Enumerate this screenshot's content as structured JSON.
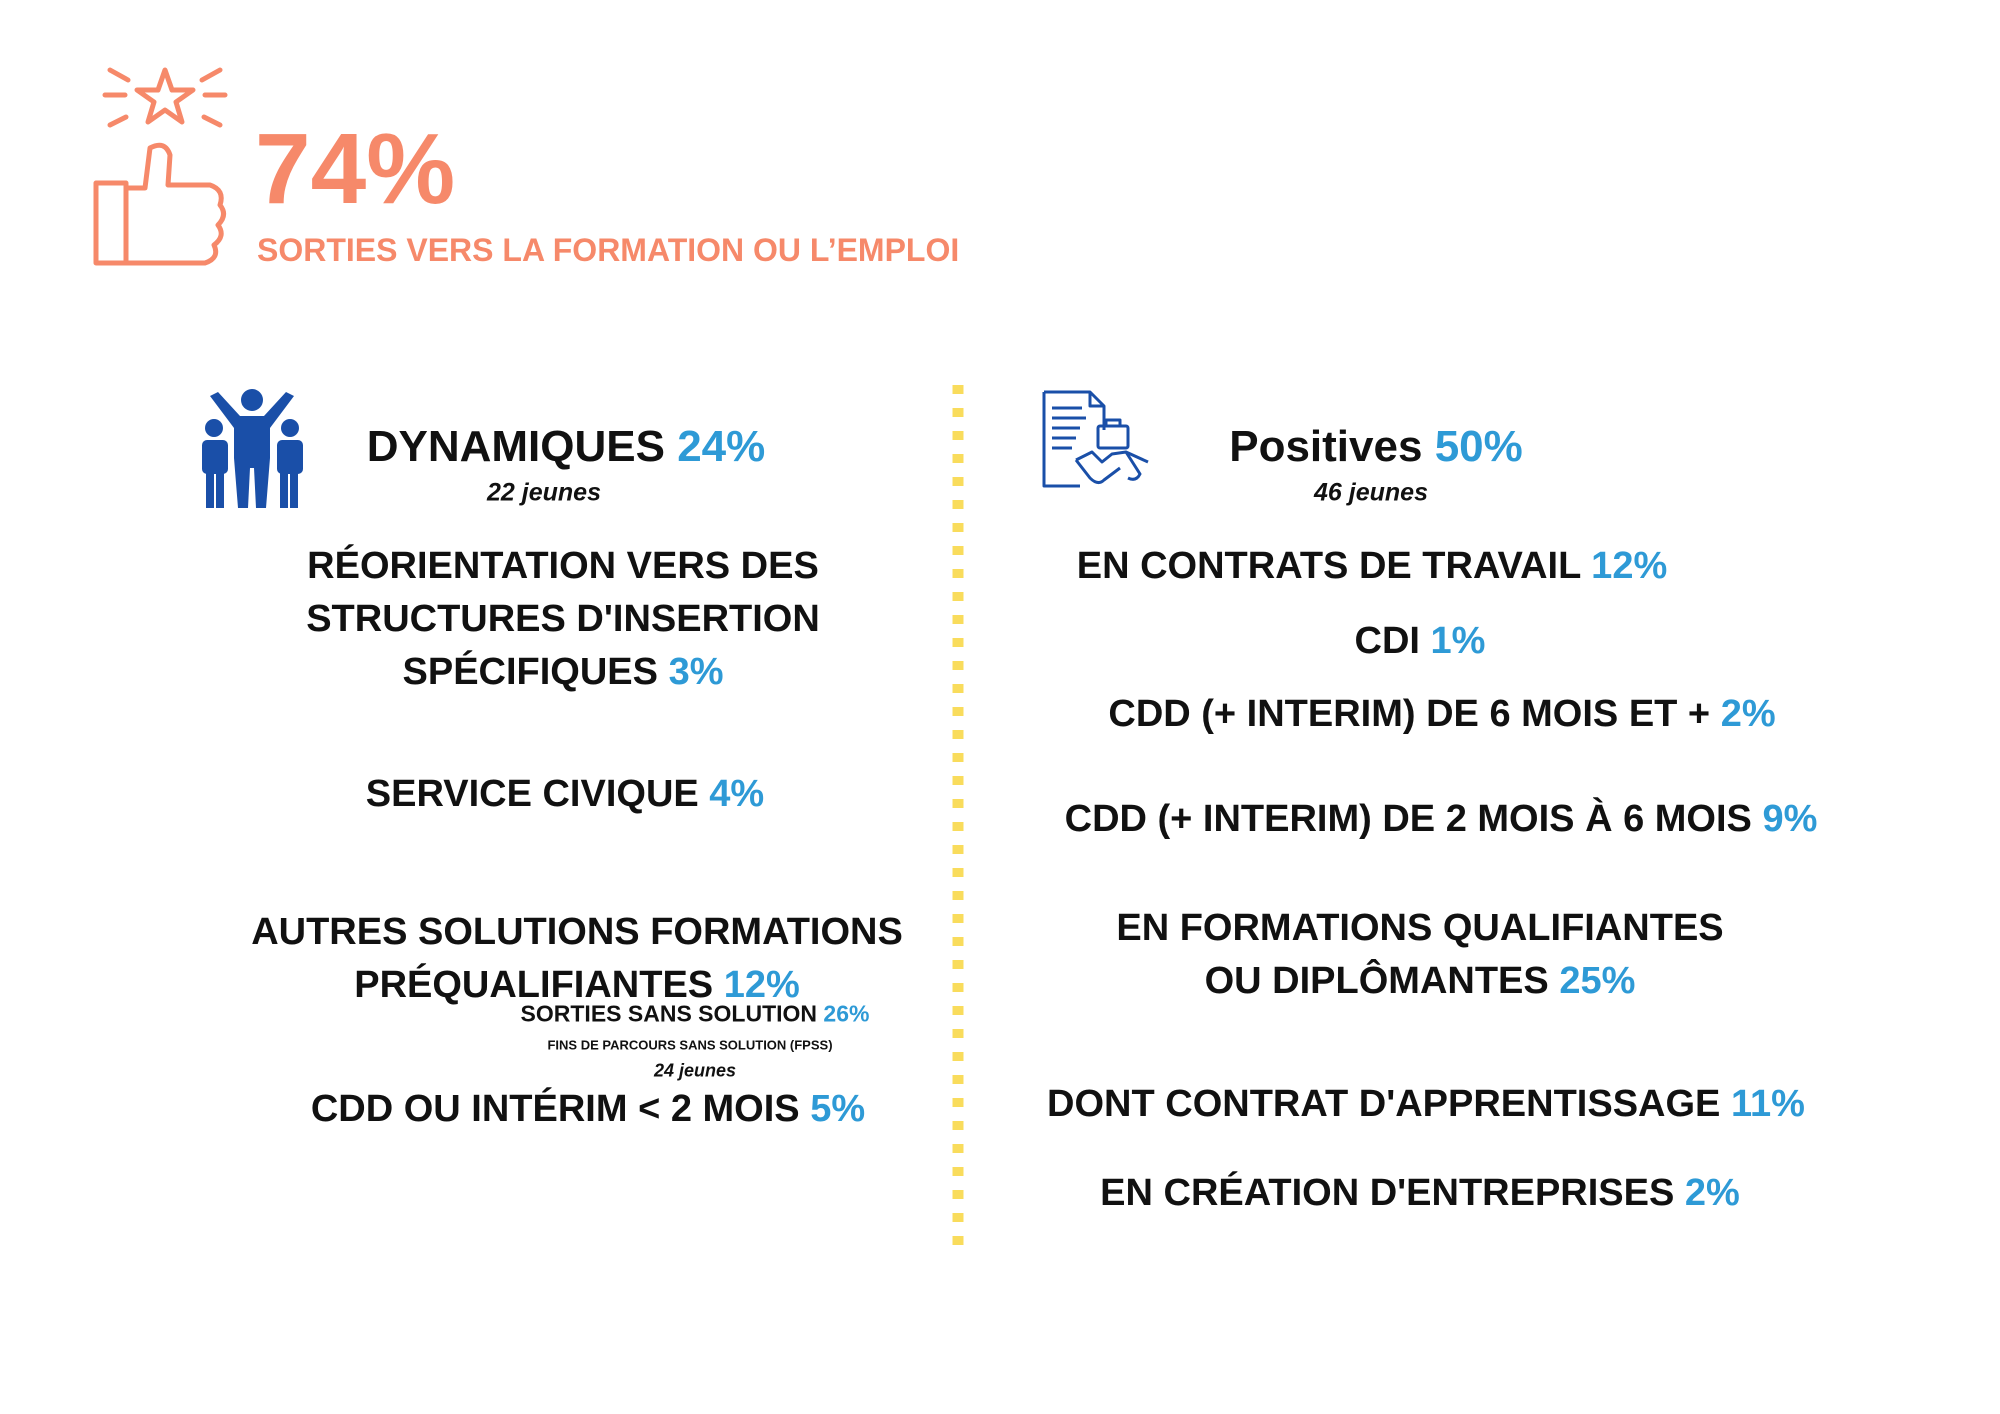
{
  "header": {
    "value": "74%",
    "label": "SORTIES VERS LA FORMATION OU L’EMPLOI"
  },
  "left": {
    "title": "DYNAMIQUES",
    "percent": "24%",
    "count": "22 jeunes",
    "items": [
      {
        "lines": [
          "RÉORIENTATION VERS DES",
          "STRUCTURES D'INSERTION",
          "SPÉCIFIQUES"
        ],
        "percent": "3%"
      },
      {
        "lines": [
          "SERVICE CIVIQUE"
        ],
        "percent": "4%"
      },
      {
        "lines": [
          "AUTRES SOLUTIONS FORMATIONS",
          "PRÉQUALIFIANTES"
        ],
        "percent": "12%"
      },
      {
        "lines": [
          "CDD OU INTÉRIM < 2 MOIS"
        ],
        "percent": "5%"
      }
    ]
  },
  "overlay": {
    "title": "SORTIES SANS SOLUTION",
    "percent": "26%",
    "subtitle": "FINS DE PARCOURS SANS SOLUTION (FPSS)",
    "count": "24 jeunes"
  },
  "right": {
    "title": "Positives",
    "percent": "50%",
    "count": "46 jeunes",
    "items": [
      {
        "lines": [
          "EN CONTRATS DE TRAVAIL"
        ],
        "percent": "12%"
      },
      {
        "lines": [
          "CDI"
        ],
        "percent": "1%"
      },
      {
        "lines": [
          "CDD (+ INTERIM) DE 6 MOIS ET +"
        ],
        "percent": "2%"
      },
      {
        "lines": [
          "CDD (+ INTERIM) DE 2 MOIS À 6 MOIS"
        ],
        "percent": "9%"
      },
      {
        "lines": [
          "EN FORMATIONS QUALIFIANTES",
          "OU DIPLÔMANTES"
        ],
        "percent": "25%"
      },
      {
        "lines": [
          "DONT CONTRAT D'APPRENTISSAGE"
        ],
        "percent": "11%"
      },
      {
        "lines": [
          "EN CRÉATION D'ENTREPRISES"
        ],
        "percent": "2%"
      }
    ]
  }
}
